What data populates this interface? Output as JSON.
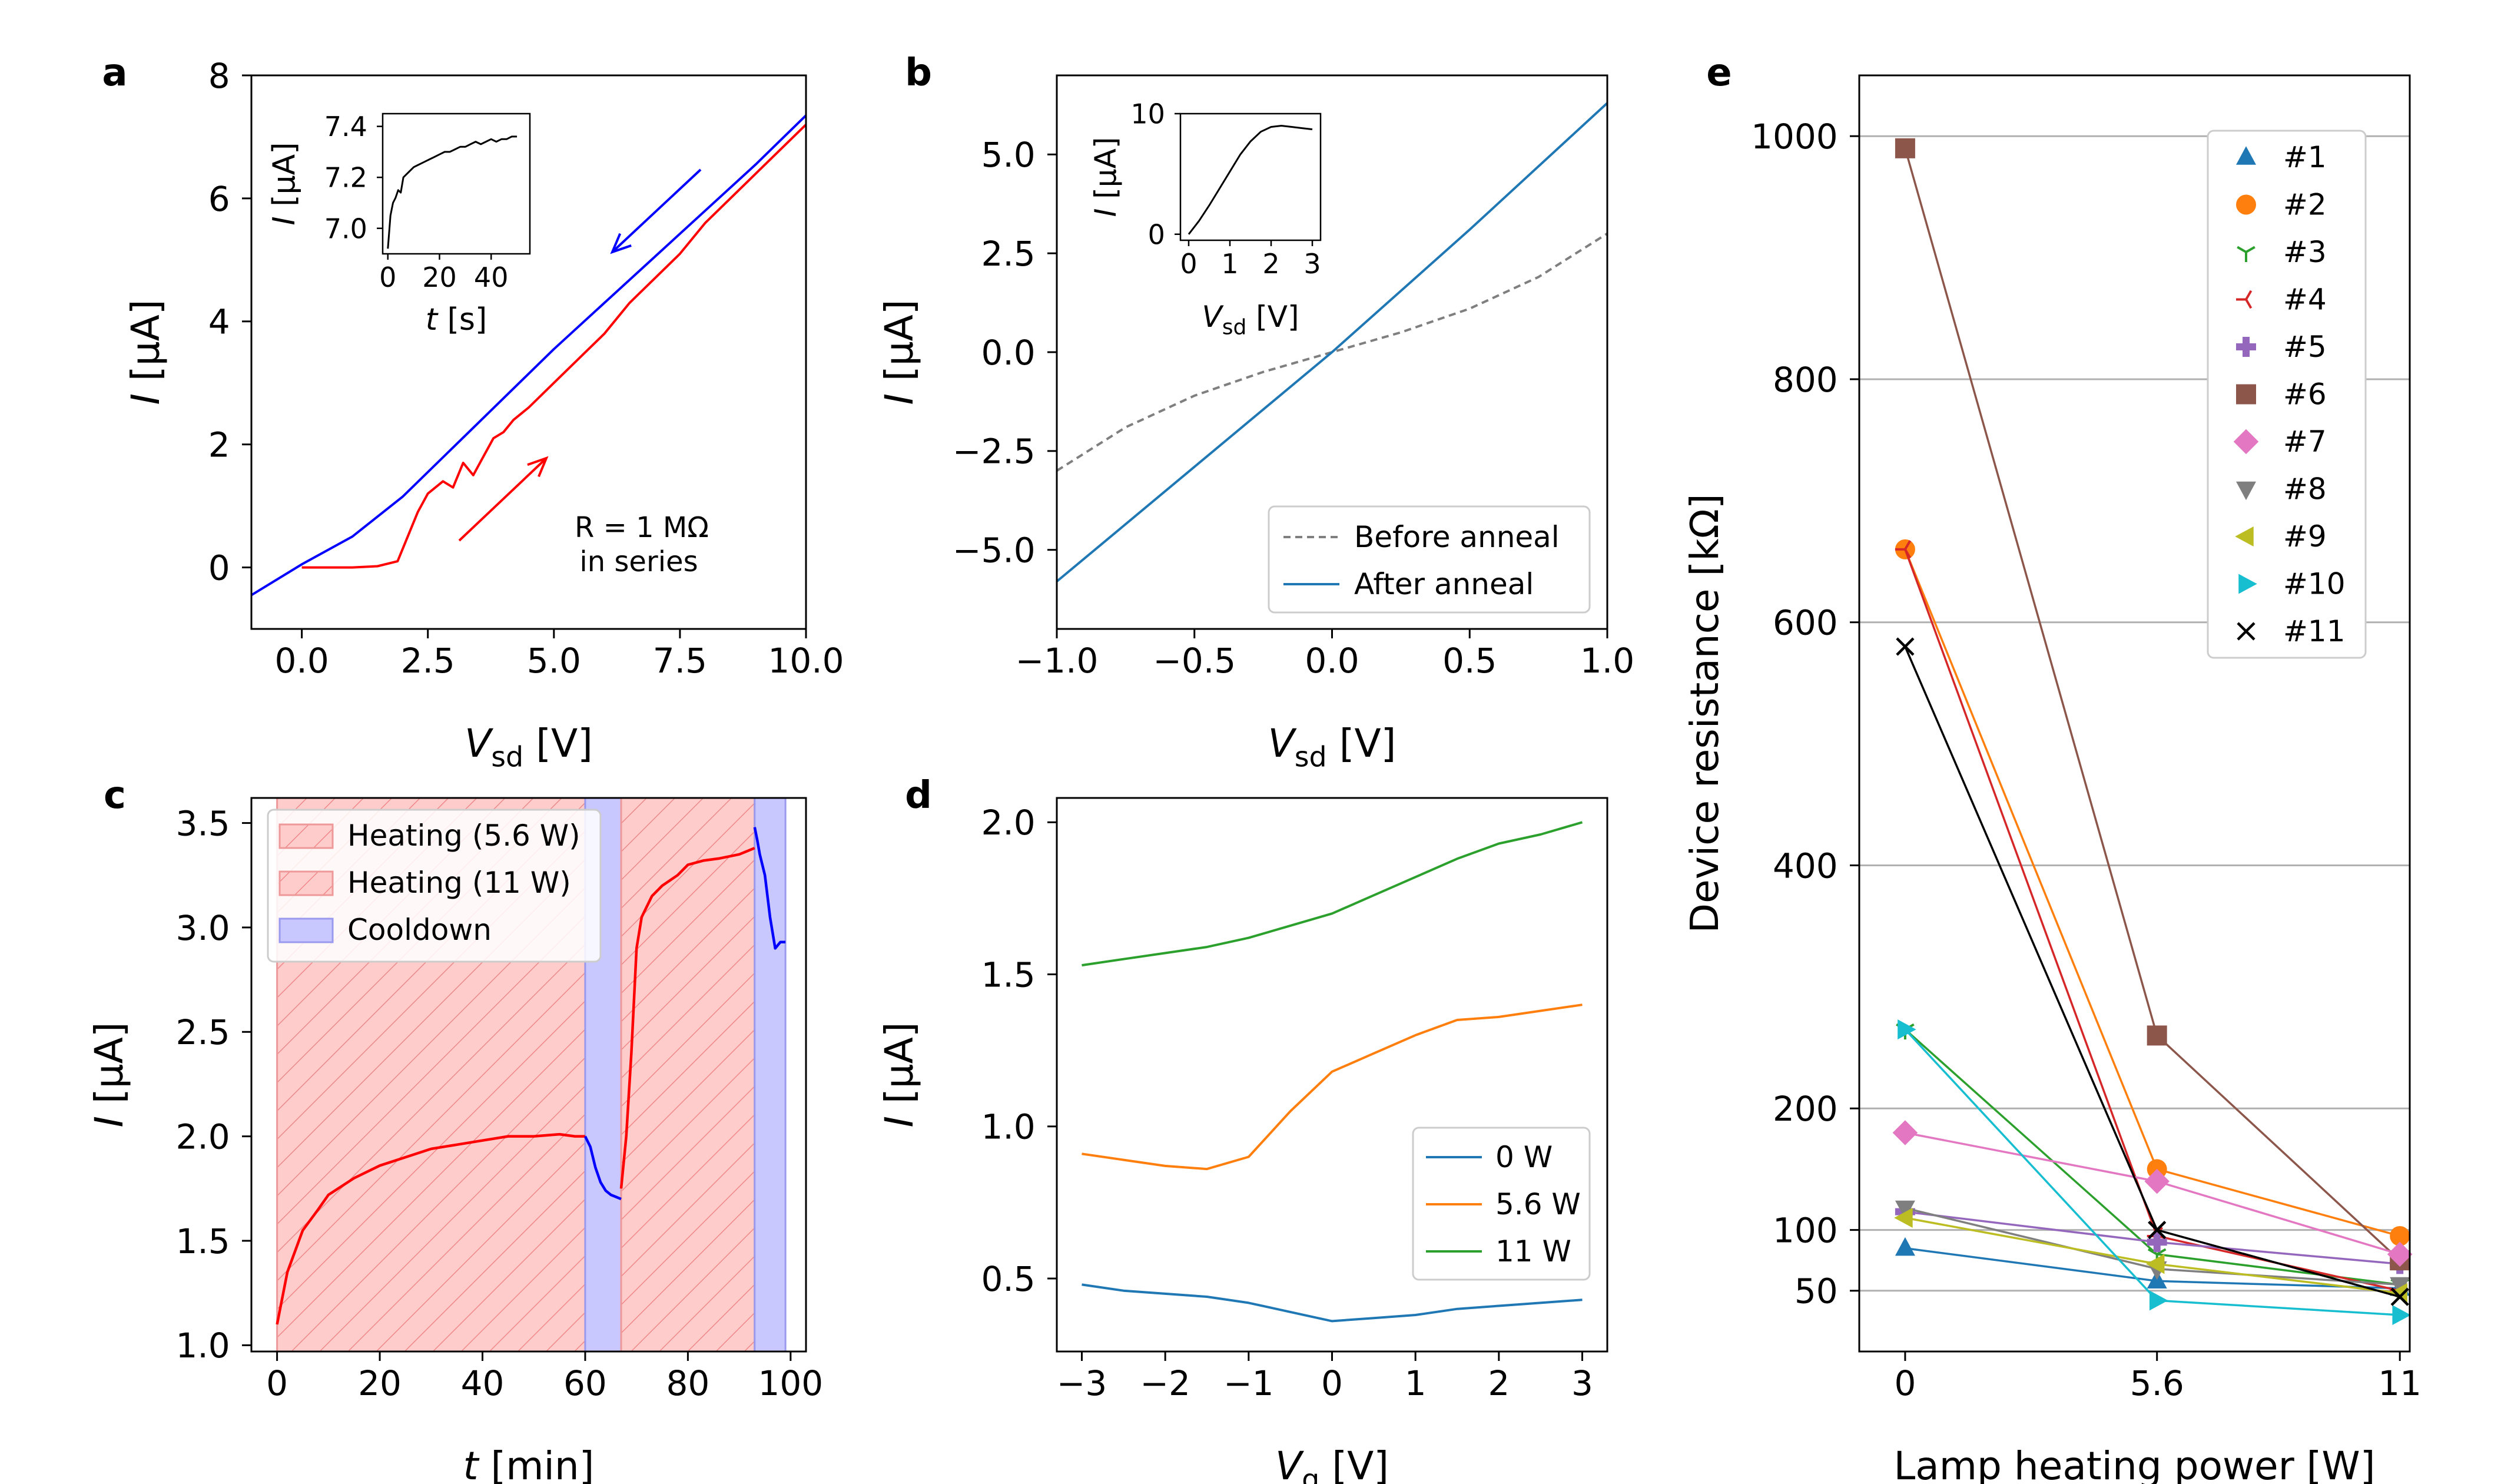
{
  "colors": {
    "c0": "#1f77b4",
    "c1": "#ff7f0e",
    "c2": "#2ca02c",
    "c3": "#d62728",
    "c4": "#9467bd",
    "c5": "#8c564b",
    "c6": "#e377c2",
    "c7": "#7f7f7f",
    "c8": "#bcbd22",
    "c9": "#17becf",
    "red": "#ff0000",
    "blue": "#0000ff",
    "black": "#000000"
  },
  "chart_data": [
    {
      "id": "a",
      "panel_label": "a",
      "type": "line",
      "xlabel_main": "V",
      "xlabel_sub": "sd",
      "xlabel_unit": " [V]",
      "ylabel_main": "I",
      "ylabel_unit": " [µA]",
      "xlim": [
        -1,
        10
      ],
      "ylim": [
        -1,
        8
      ],
      "xticks": [
        0,
        2.5,
        5,
        7.5,
        10
      ],
      "xtick_labels": [
        "0.0",
        "2.5",
        "5.0",
        "7.5",
        "10.0"
      ],
      "yticks": [
        0,
        2,
        4,
        6,
        8
      ],
      "ytick_labels": [
        "0",
        "2",
        "4",
        "6",
        "8"
      ],
      "series": [
        {
          "name": "sweep up",
          "color": "red",
          "x": [
            0,
            0.5,
            1,
            1.5,
            1.9,
            2.1,
            2.3,
            2.5,
            2.8,
            3.0,
            3.2,
            3.4,
            3.6,
            3.8,
            4.0,
            4.2,
            4.5,
            5,
            5.5,
            6,
            6.5,
            7,
            7.5,
            8,
            8.5,
            9,
            9.5,
            10
          ],
          "y": [
            0,
            0,
            0,
            0.02,
            0.1,
            0.5,
            0.9,
            1.2,
            1.4,
            1.3,
            1.7,
            1.5,
            1.8,
            2.1,
            2.2,
            2.4,
            2.6,
            3.0,
            3.4,
            3.8,
            4.3,
            4.7,
            5.1,
            5.6,
            6.0,
            6.4,
            6.8,
            7.2
          ]
        },
        {
          "name": "sweep down",
          "color": "blue",
          "x": [
            -1,
            0,
            1,
            2,
            3,
            4,
            5,
            6,
            7,
            8,
            9,
            10
          ],
          "y": [
            -0.45,
            0.05,
            0.5,
            1.15,
            1.95,
            2.75,
            3.55,
            4.3,
            5.05,
            5.8,
            6.55,
            7.35
          ]
        }
      ],
      "annotations": {
        "r_text": "R = 1 MΩ",
        "r_sub": "in series"
      },
      "inset": {
        "xlabel_main": "t",
        "xlabel_unit": " [s]",
        "ylabel_main": "I",
        "ylabel_unit": " [µA]",
        "xlim": [
          -2,
          55
        ],
        "ylim": [
          6.9,
          7.45
        ],
        "xticks": [
          0,
          20,
          40
        ],
        "xtick_labels": [
          "0",
          "20",
          "40"
        ],
        "yticks": [
          7.0,
          7.2,
          7.4
        ],
        "ytick_labels": [
          "7.0",
          "7.2",
          "7.4"
        ],
        "x": [
          0,
          1,
          2,
          3,
          4,
          5,
          6,
          8,
          10,
          12,
          14,
          16,
          18,
          20,
          22,
          24,
          26,
          28,
          30,
          32,
          34,
          36,
          38,
          40,
          42,
          44,
          46,
          48,
          50
        ],
        "y": [
          6.92,
          7.05,
          7.1,
          7.12,
          7.15,
          7.14,
          7.2,
          7.22,
          7.24,
          7.25,
          7.26,
          7.27,
          7.28,
          7.29,
          7.3,
          7.3,
          7.31,
          7.32,
          7.32,
          7.33,
          7.34,
          7.33,
          7.34,
          7.35,
          7.34,
          7.35,
          7.35,
          7.36,
          7.36
        ]
      }
    },
    {
      "id": "b",
      "panel_label": "b",
      "type": "line",
      "xlabel_main": "V",
      "xlabel_sub": "sd",
      "xlabel_unit": " [V]",
      "ylabel_main": "I",
      "ylabel_unit": " [µA]",
      "xlim": [
        -1,
        1
      ],
      "ylim": [
        -7,
        7
      ],
      "xticks": [
        -1,
        -0.5,
        0,
        0.5,
        1
      ],
      "xtick_labels": [
        "−1.0",
        "−0.5",
        "0.0",
        "0.5",
        "1.0"
      ],
      "yticks": [
        -5,
        -2.5,
        0,
        2.5,
        5
      ],
      "ytick_labels": [
        "−5.0",
        "−2.5",
        "0.0",
        "2.5",
        "5.0"
      ],
      "series": [
        {
          "name": "Before anneal",
          "color": "c7",
          "dashed": true,
          "x": [
            -1,
            -0.75,
            -0.5,
            -0.25,
            0,
            0.25,
            0.5,
            0.75,
            1
          ],
          "y": [
            -3.0,
            -1.9,
            -1.1,
            -0.5,
            0.0,
            0.5,
            1.1,
            1.9,
            3.0
          ]
        },
        {
          "name": "After anneal",
          "color": "c0",
          "dashed": false,
          "x": [
            -1,
            -0.5,
            0,
            0.5,
            1
          ],
          "y": [
            -5.8,
            -2.9,
            0,
            3.1,
            6.3
          ]
        }
      ],
      "legend": [
        "Before anneal",
        "After anneal"
      ],
      "inset": {
        "xlabel_main": "V",
        "xlabel_sub": "sd",
        "xlabel_unit": " [V]",
        "ylabel_main": "I",
        "ylabel_unit": " [µA]",
        "xlim": [
          -0.2,
          3.2
        ],
        "ylim": [
          -0.5,
          10
        ],
        "xticks": [
          0,
          1,
          2,
          3
        ],
        "xtick_labels": [
          "0",
          "1",
          "2",
          "3"
        ],
        "yticks": [
          0,
          10
        ],
        "ytick_labels": [
          "0",
          "10"
        ],
        "x": [
          0,
          0.25,
          0.5,
          0.75,
          1,
          1.25,
          1.5,
          1.75,
          2,
          2.25,
          2.5,
          2.75,
          3
        ],
        "y": [
          0,
          1.1,
          2.4,
          3.8,
          5.2,
          6.6,
          7.7,
          8.5,
          8.9,
          9.0,
          8.9,
          8.8,
          8.7
        ]
      }
    },
    {
      "id": "c",
      "panel_label": "c",
      "type": "line",
      "xlabel_main": "t",
      "xlabel_unit": " [min]",
      "ylabel_main": "I",
      "ylabel_unit": " [µA]",
      "xlim": [
        -5,
        103
      ],
      "ylim": [
        0.97,
        3.62
      ],
      "xticks": [
        0,
        20,
        40,
        60,
        80,
        100
      ],
      "xtick_labels": [
        "0",
        "20",
        "40",
        "60",
        "80",
        "100"
      ],
      "yticks": [
        1.0,
        1.5,
        2.0,
        2.5,
        3.0,
        3.5
      ],
      "ytick_labels": [
        "1.0",
        "1.5",
        "2.0",
        "2.5",
        "3.0",
        "3.5"
      ],
      "regions": [
        {
          "name": "Heating (5.6 W)",
          "x0": 0,
          "x1": 60,
          "kind": "heat"
        },
        {
          "name": "Cooldown",
          "x0": 60,
          "x1": 67,
          "kind": "cool"
        },
        {
          "name": "Heating (11 W)",
          "x0": 67,
          "x1": 93,
          "kind": "heat"
        },
        {
          "name": "Cooldown",
          "x0": 93,
          "x1": 99,
          "kind": "cool"
        }
      ],
      "legend": [
        "Heating (5.6 W)",
        "Heating (11 W)",
        "Cooldown"
      ],
      "series": [
        {
          "name": "heating 1",
          "color": "red",
          "x": [
            0,
            2,
            5,
            8,
            10,
            15,
            20,
            25,
            30,
            35,
            40,
            45,
            50,
            55,
            58,
            60
          ],
          "y": [
            1.1,
            1.35,
            1.55,
            1.65,
            1.72,
            1.8,
            1.86,
            1.9,
            1.94,
            1.96,
            1.98,
            2.0,
            2.0,
            2.01,
            2.0,
            2.0
          ]
        },
        {
          "name": "cooldown 1",
          "color": "blue",
          "x": [
            60,
            61,
            62,
            63,
            64,
            65,
            66,
            67
          ],
          "y": [
            2.0,
            1.95,
            1.85,
            1.78,
            1.74,
            1.72,
            1.71,
            1.7
          ]
        },
        {
          "name": "heating 2",
          "color": "red",
          "x": [
            67,
            68,
            69,
            70,
            71,
            72,
            73,
            75,
            78,
            80,
            83,
            86,
            90,
            93
          ],
          "y": [
            1.75,
            2.0,
            2.4,
            2.9,
            3.05,
            3.1,
            3.15,
            3.2,
            3.25,
            3.3,
            3.32,
            3.33,
            3.35,
            3.38
          ]
        },
        {
          "name": "cooldown 2",
          "color": "blue",
          "x": [
            93,
            93.5,
            94,
            95,
            96,
            97,
            98,
            99
          ],
          "y": [
            3.48,
            3.42,
            3.35,
            3.25,
            3.05,
            2.9,
            2.93,
            2.93
          ]
        }
      ]
    },
    {
      "id": "d",
      "panel_label": "d",
      "type": "line",
      "xlabel_main": "V",
      "xlabel_sub": "g",
      "xlabel_unit": " [V]",
      "ylabel_main": "I",
      "ylabel_unit": " [µA]",
      "xlim": [
        -3.3,
        3.3
      ],
      "ylim": [
        0.26,
        2.08
      ],
      "xticks": [
        -3,
        -2,
        -1,
        0,
        1,
        2,
        3
      ],
      "xtick_labels": [
        "−3",
        "−2",
        "−1",
        "0",
        "1",
        "2",
        "3"
      ],
      "yticks": [
        0.5,
        1.0,
        1.5,
        2.0
      ],
      "ytick_labels": [
        "0.5",
        "1.0",
        "1.5",
        "2.0"
      ],
      "series": [
        {
          "name": "0 W",
          "color": "c0",
          "x": [
            -3,
            -2.5,
            -2,
            -1.5,
            -1,
            -0.5,
            0,
            0.5,
            1,
            1.5,
            2,
            2.5,
            3
          ],
          "y": [
            0.48,
            0.46,
            0.45,
            0.44,
            0.42,
            0.39,
            0.36,
            0.37,
            0.38,
            0.4,
            0.41,
            0.42,
            0.43
          ]
        },
        {
          "name": "5.6 W",
          "color": "c1",
          "x": [
            -3,
            -2.5,
            -2,
            -1.5,
            -1,
            -0.5,
            0,
            0.5,
            1,
            1.5,
            2,
            2.5,
            3
          ],
          "y": [
            0.91,
            0.89,
            0.87,
            0.86,
            0.9,
            1.05,
            1.18,
            1.24,
            1.3,
            1.35,
            1.36,
            1.38,
            1.4
          ]
        },
        {
          "name": "11 W",
          "color": "c2",
          "x": [
            -3,
            -2.5,
            -2,
            -1.5,
            -1,
            -0.5,
            0,
            0.5,
            1,
            1.5,
            2,
            2.5,
            3
          ],
          "y": [
            1.53,
            1.55,
            1.57,
            1.59,
            1.62,
            1.66,
            1.7,
            1.76,
            1.82,
            1.88,
            1.93,
            1.96,
            2.0
          ]
        }
      ],
      "legend": [
        "0 W",
        "5.6 W",
        "11 W"
      ]
    },
    {
      "id": "e",
      "panel_label": "e",
      "type": "scatter",
      "xlabel": "Lamp heating power [W]",
      "ylabel": "Device resistance [kΩ]",
      "xlim": [
        -1.02,
        11.22
      ],
      "ylim": [
        0,
        1050
      ],
      "xticks": [
        0,
        5.6,
        11
      ],
      "xtick_labels": [
        "0",
        "5.6",
        "11"
      ],
      "yticks": [
        50,
        100,
        200,
        400,
        600,
        800,
        1000
      ],
      "ytick_labels": [
        "50",
        "100",
        "200",
        "400",
        "600",
        "800",
        "1000"
      ],
      "x": [
        0,
        5.6,
        11
      ],
      "series": [
        {
          "name": "#1",
          "color": "c0",
          "marker": "triangle-up",
          "values": [
            85,
            58,
            52
          ]
        },
        {
          "name": "#2",
          "color": "c1",
          "marker": "circle",
          "values": [
            660,
            150,
            95
          ]
        },
        {
          "name": "#3",
          "color": "c2",
          "marker": "tri-down",
          "values": [
            265,
            80,
            55
          ]
        },
        {
          "name": "#4",
          "color": "c3",
          "marker": "tri-left",
          "values": [
            660,
            95,
            50
          ]
        },
        {
          "name": "#5",
          "color": "c4",
          "marker": "plus",
          "values": [
            115,
            90,
            72
          ]
        },
        {
          "name": "#6",
          "color": "c5",
          "marker": "square",
          "values": [
            990,
            260,
            75
          ]
        },
        {
          "name": "#7",
          "color": "c6",
          "marker": "diamond",
          "values": [
            180,
            140,
            80
          ]
        },
        {
          "name": "#8",
          "color": "c7",
          "marker": "triangle-down",
          "values": [
            118,
            68,
            55
          ]
        },
        {
          "name": "#9",
          "color": "c8",
          "marker": "triangle-left",
          "values": [
            110,
            72,
            48
          ]
        },
        {
          "name": "#10",
          "color": "c9",
          "marker": "triangle-right",
          "values": [
            265,
            42,
            30
          ]
        },
        {
          "name": "#11",
          "color": "black",
          "marker": "x",
          "values": [
            580,
            100,
            45
          ]
        }
      ]
    }
  ]
}
